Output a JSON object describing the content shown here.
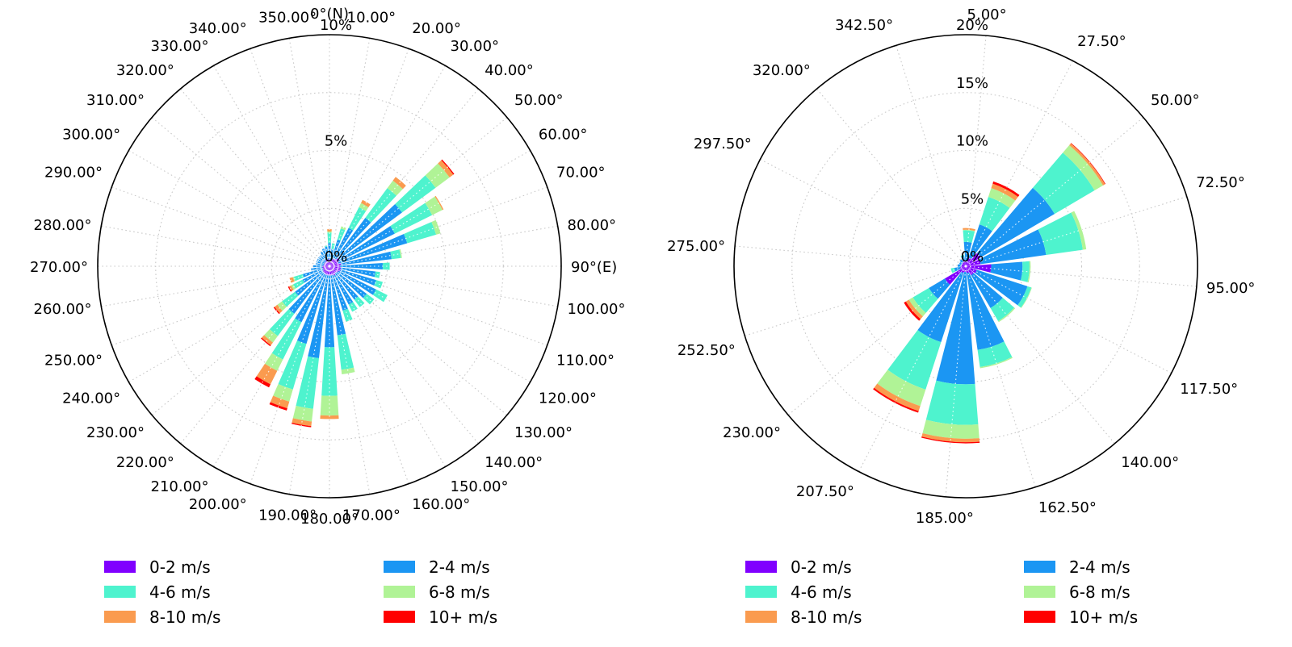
{
  "page": {
    "background": "#ffffff"
  },
  "chart_data": {
    "type": "bar",
    "subtype": "polar-stacked-windrose",
    "units": "%",
    "speed_bins": [
      {
        "label": "0-2 m/s",
        "color": "#8000ff"
      },
      {
        "label": "2-4 m/s",
        "color": "#1b96f3"
      },
      {
        "label": "4-6 m/s",
        "color": "#4ef3ce"
      },
      {
        "label": "6-8 m/s",
        "color": "#b0f396"
      },
      {
        "label": "8-10 m/s",
        "color": "#fa9b4f"
      },
      {
        "label": "10+ m/s",
        "color": "#ff0000"
      }
    ],
    "legend_column_order": [
      [
        0,
        2,
        4
      ],
      [
        1,
        3,
        5
      ]
    ],
    "charts": [
      {
        "id": "left",
        "rmax": 10,
        "grid_rings": [
          2.5,
          5,
          7.5
        ],
        "radial_ticks": [
          {
            "r": 0,
            "label": "0%"
          },
          {
            "r": 5,
            "label": "5%"
          },
          {
            "r": 10,
            "label": "10%"
          }
        ],
        "bar_half_width_deg": 3.5,
        "directions": [
          {
            "angle": 0,
            "label": "0°(N)",
            "values": [
              0.3,
              0.7,
              0.45,
              0.05,
              0.1,
              0
            ]
          },
          {
            "angle": 10,
            "label": "10.00°",
            "values": [
              0.25,
              0.5,
              0.25,
              0,
              0,
              0
            ]
          },
          {
            "angle": 20,
            "label": "20.00°",
            "values": [
              0.3,
              0.9,
              0.5,
              0.1,
              0,
              0
            ]
          },
          {
            "angle": 30,
            "label": "30.00°",
            "values": [
              0.35,
              1.5,
              1.0,
              0.2,
              0.15,
              0
            ]
          },
          {
            "angle": 40,
            "label": "40.00°",
            "values": [
              0.4,
              2.2,
              1.6,
              0.4,
              0.2,
              0
            ]
          },
          {
            "angle": 50,
            "label": "50.00°",
            "values": [
              0.5,
              3.4,
              1.8,
              0.75,
              0.2,
              0.05
            ]
          },
          {
            "angle": 60,
            "label": "60.00°",
            "values": [
              0.45,
              2.7,
              1.8,
              0.5,
              0.05,
              0
            ]
          },
          {
            "angle": 70,
            "label": "70.00°",
            "values": [
              0.4,
              3.1,
              1.3,
              0.2,
              0,
              0
            ]
          },
          {
            "angle": 80,
            "label": "80.00°",
            "values": [
              0.5,
              2.2,
              0.4,
              0.05,
              0,
              0
            ]
          },
          {
            "angle": 90,
            "label": "90°(E)",
            "values": [
              0.45,
              1.85,
              0.3,
              0,
              0,
              0
            ]
          },
          {
            "angle": 100,
            "label": "100.00°",
            "values": [
              0.5,
              1.5,
              0.2,
              0,
              0,
              0
            ]
          },
          {
            "angle": 110,
            "label": "110.00°",
            "values": [
              0.5,
              1.6,
              0.3,
              0,
              0,
              0
            ]
          },
          {
            "angle": 120,
            "label": "120.00°",
            "values": [
              0.45,
              1.8,
              0.55,
              0,
              0,
              0
            ]
          },
          {
            "angle": 130,
            "label": "130.00°",
            "values": [
              0.4,
              1.6,
              0.4,
              0,
              0,
              0
            ]
          },
          {
            "angle": 140,
            "label": "140.00°",
            "values": [
              0.4,
              1.4,
              0.4,
              0,
              0,
              0
            ]
          },
          {
            "angle": 150,
            "label": "150.00°",
            "values": [
              0.45,
              1.4,
              0.35,
              0,
              0,
              0
            ]
          },
          {
            "angle": 160,
            "label": "160.00°",
            "values": [
              0.4,
              1.6,
              0.5,
              0,
              0,
              0
            ]
          },
          {
            "angle": 170,
            "label": "170.00°",
            "values": [
              0.4,
              2.6,
              1.5,
              0.2,
              0,
              0
            ]
          },
          {
            "angle": 180,
            "label": "180.00°",
            "values": [
              0.4,
              3.1,
              2.1,
              0.85,
              0.15,
              0
            ]
          },
          {
            "angle": 190,
            "label": "190.00°",
            "values": [
              0.4,
              3.6,
              2.2,
              0.55,
              0.2,
              0.05
            ]
          },
          {
            "angle": 200,
            "label": "200.00°",
            "values": [
              0.4,
              3.1,
              2.05,
              0.55,
              0.3,
              0.1
            ]
          },
          {
            "angle": 210,
            "label": "210.00°",
            "values": [
              0.4,
              2.3,
              1.8,
              0.55,
              0.65,
              0.15
            ]
          },
          {
            "angle": 220,
            "label": "220.00°",
            "values": [
              0.35,
              2.2,
              1.2,
              0.35,
              0.15,
              0.05
            ]
          },
          {
            "angle": 230,
            "label": "230.00°",
            "values": [
              0.35,
              1.5,
              0.7,
              0.25,
              0.15,
              0.05
            ]
          },
          {
            "angle": 240,
            "label": "240.00°",
            "values": [
              0.3,
              1.0,
              0.45,
              0.1,
              0.1,
              0.05
            ]
          },
          {
            "angle": 250,
            "label": "250.00°",
            "values": [
              0.3,
              0.9,
              0.4,
              0.05,
              0.15,
              0
            ]
          },
          {
            "angle": 260,
            "label": "260.00°",
            "values": [
              0.3,
              0.5,
              0,
              0,
              0,
              0
            ]
          },
          {
            "angle": 270,
            "label": "270.00°",
            "values": [
              0.3,
              0.4,
              0,
              0,
              0,
              0
            ]
          },
          {
            "angle": 280,
            "label": "280.00°",
            "values": [
              0.25,
              0.35,
              0,
              0,
              0,
              0
            ]
          },
          {
            "angle": 290,
            "label": "290.00°",
            "values": [
              0.25,
              0.35,
              0,
              0,
              0,
              0
            ]
          },
          {
            "angle": 300,
            "label": "300.00°",
            "values": [
              0.25,
              0.35,
              0,
              0,
              0,
              0
            ]
          },
          {
            "angle": 310,
            "label": "310.00°",
            "values": [
              0.25,
              0.35,
              0,
              0,
              0,
              0
            ]
          },
          {
            "angle": 320,
            "label": "320.00°",
            "values": [
              0.25,
              0.35,
              0,
              0,
              0,
              0
            ]
          },
          {
            "angle": 330,
            "label": "330.00°",
            "values": [
              0.3,
              0.4,
              0,
              0,
              0,
              0
            ]
          },
          {
            "angle": 340,
            "label": "340.00°",
            "values": [
              0.3,
              0.5,
              0,
              0,
              0,
              0
            ]
          },
          {
            "angle": 350,
            "label": "350.00°",
            "values": [
              0.3,
              0.55,
              0.05,
              0,
              0,
              0
            ]
          }
        ]
      },
      {
        "id": "right",
        "rmax": 20,
        "grid_rings": [
          5,
          10,
          15
        ],
        "radial_ticks": [
          {
            "r": 0,
            "label": "0%"
          },
          {
            "r": 5,
            "label": "5%"
          },
          {
            "r": 10,
            "label": "10%"
          },
          {
            "r": 15,
            "label": "15%"
          },
          {
            "r": 20,
            "label": "20%"
          }
        ],
        "bar_half_width_deg": 9.5,
        "directions": [
          {
            "angle": 5,
            "label": "5.00°",
            "values": [
              0.5,
              1.6,
              1.0,
              0.05,
              0.15,
              0
            ]
          },
          {
            "angle": 27.5,
            "label": "27.50°",
            "values": [
              0.8,
              3.0,
              2.5,
              0.8,
              0.4,
              0.2
            ]
          },
          {
            "angle": 50,
            "label": "50.00°",
            "values": [
              1.5,
              7.4,
              4.0,
              0.85,
              0.2,
              0.05
            ]
          },
          {
            "angle": 72.5,
            "label": "72.50°",
            "values": [
              1.3,
              5.7,
              3.2,
              0.3,
              0,
              0
            ]
          },
          {
            "angle": 95,
            "label": "95.00°",
            "values": [
              2.2,
              2.7,
              0.6,
              0.1,
              0,
              0
            ]
          },
          {
            "angle": 117.5,
            "label": "117.50°",
            "values": [
              1.0,
              4.6,
              0.35,
              0.05,
              0,
              0
            ]
          },
          {
            "angle": 140,
            "label": "140.00°",
            "values": [
              0.9,
              3.3,
              1.3,
              0.1,
              0,
              0
            ]
          },
          {
            "angle": 162.5,
            "label": "162.50°",
            "values": [
              0.6,
              6.7,
              1.5,
              0.1,
              0,
              0
            ]
          },
          {
            "angle": 185,
            "label": "185.00°",
            "values": [
              0.5,
              9.7,
              3.5,
              1.2,
              0.3,
              0.1
            ]
          },
          {
            "angle": 207.5,
            "label": "207.50°",
            "values": [
              0.6,
              6.3,
              4.3,
              1.5,
              0.45,
              0.15
            ]
          },
          {
            "angle": 230,
            "label": "230.00°",
            "values": [
              2.1,
              1.6,
              1.6,
              0.4,
              0.3,
              0.2
            ]
          },
          {
            "angle": 252.5,
            "label": "252.50°",
            "values": [
              0.5,
              0.5,
              0.3,
              0,
              0,
              0
            ]
          },
          {
            "angle": 275,
            "label": "275.00°",
            "values": [
              0.4,
              0.3,
              0,
              0,
              0,
              0
            ]
          },
          {
            "angle": 297.5,
            "label": "297.50°",
            "values": [
              0.35,
              0.25,
              0,
              0,
              0,
              0
            ]
          },
          {
            "angle": 320,
            "label": "320.00°",
            "values": [
              0.4,
              0.3,
              0,
              0,
              0,
              0
            ]
          },
          {
            "angle": 342.5,
            "label": "342.50°",
            "values": [
              0.5,
              0.4,
              0.1,
              0,
              0,
              0
            ]
          }
        ]
      }
    ]
  }
}
